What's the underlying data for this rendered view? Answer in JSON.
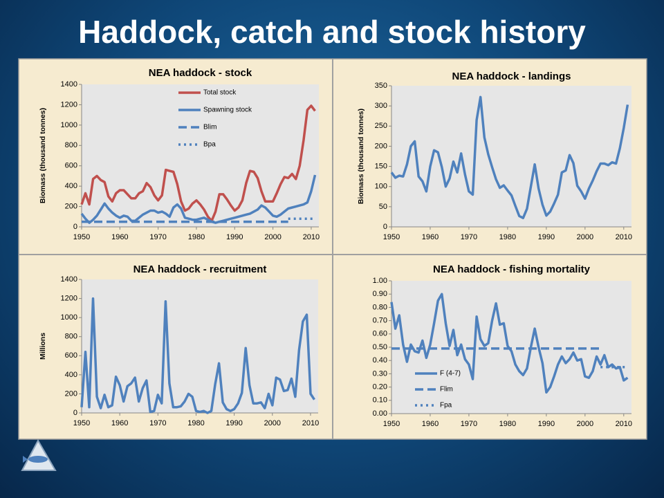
{
  "title": "Haddock, catch and stock history",
  "chart_data": [
    {
      "type": "line",
      "title": "NEA haddock - stock",
      "ylabel": "Biomass (thousand tonnes)",
      "x": [
        1950,
        1951,
        1952,
        1953,
        1954,
        1955,
        1956,
        1957,
        1958,
        1959,
        1960,
        1961,
        1962,
        1963,
        1964,
        1965,
        1966,
        1967,
        1968,
        1969,
        1970,
        1971,
        1972,
        1973,
        1974,
        1975,
        1976,
        1977,
        1978,
        1979,
        1980,
        1981,
        1982,
        1983,
        1984,
        1985,
        1986,
        1987,
        1988,
        1989,
        1990,
        1991,
        1992,
        1993,
        1994,
        1995,
        1996,
        1997,
        1998,
        1999,
        2000,
        2001,
        2002,
        2003,
        2004,
        2005,
        2006,
        2007,
        2008,
        2009,
        2010,
        2011
      ],
      "series": [
        {
          "name": "Total stock",
          "color": "#c0504d",
          "style": "solid",
          "values": [
            220,
            330,
            220,
            470,
            500,
            460,
            440,
            300,
            250,
            330,
            360,
            360,
            320,
            280,
            280,
            330,
            350,
            430,
            390,
            310,
            260,
            310,
            560,
            550,
            540,
            420,
            250,
            160,
            180,
            230,
            260,
            220,
            170,
            100,
            60,
            150,
            320,
            320,
            270,
            210,
            160,
            190,
            260,
            430,
            550,
            540,
            480,
            350,
            250,
            250,
            250,
            330,
            420,
            490,
            480,
            520,
            470,
            600,
            850,
            1150,
            1190,
            1140
          ]
        },
        {
          "name": "Spawning stock",
          "color": "#4f81bd",
          "style": "solid",
          "values": [
            130,
            80,
            40,
            70,
            110,
            170,
            230,
            180,
            140,
            110,
            90,
            110,
            100,
            60,
            60,
            90,
            120,
            140,
            160,
            160,
            140,
            150,
            130,
            100,
            190,
            220,
            180,
            90,
            80,
            70,
            70,
            80,
            90,
            70,
            50,
            40,
            50,
            60,
            70,
            80,
            90,
            100,
            110,
            120,
            130,
            150,
            170,
            210,
            190,
            150,
            110,
            100,
            120,
            150,
            180,
            190,
            200,
            210,
            220,
            240,
            350,
            510
          ]
        },
        {
          "name": "Blim",
          "color": "#4f81bd",
          "style": "dashed",
          "x": [
            1950,
            2004
          ],
          "values": [
            50,
            50
          ]
        },
        {
          "name": "Bpa",
          "color": "#4f81bd",
          "style": "dotted",
          "x": [
            2004,
            2011
          ],
          "values": [
            80,
            80
          ]
        }
      ],
      "xlim": [
        1950,
        2012
      ],
      "xticks": [
        1950,
        1960,
        1970,
        1980,
        1990,
        2000,
        2010
      ],
      "ylim": [
        0,
        1400
      ],
      "yticks": [
        0,
        200,
        400,
        600,
        800,
        1000,
        1200,
        1400
      ],
      "legend": "top"
    },
    {
      "type": "line",
      "title": "NEA haddock - landings",
      "ylabel": "Biomass (thousand tonnes)",
      "x": [
        1950,
        1951,
        1952,
        1953,
        1954,
        1955,
        1956,
        1957,
        1958,
        1959,
        1960,
        1961,
        1962,
        1963,
        1964,
        1965,
        1966,
        1967,
        1968,
        1969,
        1970,
        1971,
        1972,
        1973,
        1974,
        1975,
        1976,
        1977,
        1978,
        1979,
        1980,
        1981,
        1982,
        1983,
        1984,
        1985,
        1986,
        1987,
        1988,
        1989,
        1990,
        1991,
        1992,
        1993,
        1994,
        1995,
        1996,
        1997,
        1998,
        1999,
        2000,
        2001,
        2002,
        2003,
        2004,
        2005,
        2006,
        2007,
        2008,
        2009,
        2010,
        2011
      ],
      "series": [
        {
          "color": "#4f81bd",
          "style": "solid",
          "values": [
            135,
            122,
            127,
            125,
            155,
            200,
            212,
            125,
            113,
            88,
            150,
            190,
            185,
            148,
            100,
            120,
            162,
            135,
            182,
            130,
            88,
            80,
            265,
            322,
            222,
            180,
            148,
            118,
            97,
            103,
            90,
            78,
            52,
            27,
            22,
            45,
            100,
            155,
            95,
            55,
            28,
            38,
            58,
            80,
            135,
            140,
            178,
            158,
            102,
            88,
            70,
            95,
            115,
            138,
            157,
            157,
            153,
            160,
            157,
            195,
            245,
            303
          ]
        }
      ],
      "xlim": [
        1950,
        2012
      ],
      "xticks": [
        1950,
        1960,
        1970,
        1980,
        1990,
        2000,
        2010
      ],
      "ylim": [
        0,
        350
      ],
      "yticks": [
        0,
        50,
        100,
        150,
        200,
        250,
        300,
        350
      ]
    },
    {
      "type": "line",
      "title": "NEA haddock - recruitment",
      "ylabel": "Millions",
      "x": [
        1950,
        1951,
        1952,
        1953,
        1954,
        1955,
        1956,
        1957,
        1958,
        1959,
        1960,
        1961,
        1962,
        1963,
        1964,
        1965,
        1966,
        1967,
        1968,
        1969,
        1970,
        1971,
        1972,
        1973,
        1974,
        1975,
        1976,
        1977,
        1978,
        1979,
        1980,
        1981,
        1982,
        1983,
        1984,
        1985,
        1986,
        1987,
        1988,
        1989,
        1990,
        1991,
        1992,
        1993,
        1994,
        1995,
        1996,
        1997,
        1998,
        1999,
        2000,
        2001,
        2002,
        2003,
        2004,
        2005,
        2006,
        2007,
        2008,
        2009,
        2010,
        2011
      ],
      "series": [
        {
          "color": "#4f81bd",
          "style": "solid",
          "values": [
            60,
            640,
            60,
            1200,
            170,
            50,
            190,
            60,
            80,
            380,
            290,
            120,
            280,
            310,
            370,
            120,
            260,
            340,
            10,
            20,
            190,
            100,
            1170,
            310,
            60,
            60,
            70,
            120,
            200,
            170,
            20,
            10,
            20,
            0,
            20,
            300,
            520,
            110,
            40,
            20,
            40,
            100,
            210,
            680,
            290,
            100,
            100,
            110,
            50,
            200,
            80,
            370,
            350,
            230,
            240,
            360,
            170,
            660,
            960,
            1030,
            200,
            140
          ]
        }
      ],
      "xlim": [
        1950,
        2012
      ],
      "xticks": [
        1950,
        1960,
        1970,
        1980,
        1990,
        2000,
        2010
      ],
      "ylim": [
        0,
        1400
      ],
      "yticks": [
        0,
        200,
        400,
        600,
        800,
        1000,
        1200,
        1400
      ]
    },
    {
      "type": "line",
      "title": "NEA haddock - fishing mortality",
      "x": [
        1950,
        1951,
        1952,
        1953,
        1954,
        1955,
        1956,
        1957,
        1958,
        1959,
        1960,
        1961,
        1962,
        1963,
        1964,
        1965,
        1966,
        1967,
        1968,
        1969,
        1970,
        1971,
        1972,
        1973,
        1974,
        1975,
        1976,
        1977,
        1978,
        1979,
        1980,
        1981,
        1982,
        1983,
        1984,
        1985,
        1986,
        1987,
        1988,
        1989,
        1990,
        1991,
        1992,
        1993,
        1994,
        1995,
        1996,
        1997,
        1998,
        1999,
        2000,
        2001,
        2002,
        2003,
        2004,
        2005,
        2006,
        2007,
        2008,
        2009,
        2010,
        2011
      ],
      "series": [
        {
          "name": "F (4-7)",
          "color": "#4f81bd",
          "style": "solid",
          "values": [
            0.84,
            0.64,
            0.74,
            0.52,
            0.39,
            0.52,
            0.47,
            0.46,
            0.55,
            0.42,
            0.52,
            0.68,
            0.85,
            0.9,
            0.68,
            0.51,
            0.63,
            0.44,
            0.52,
            0.41,
            0.37,
            0.26,
            0.73,
            0.56,
            0.51,
            0.53,
            0.7,
            0.83,
            0.67,
            0.68,
            0.51,
            0.47,
            0.37,
            0.32,
            0.29,
            0.34,
            0.5,
            0.64,
            0.5,
            0.38,
            0.16,
            0.2,
            0.28,
            0.37,
            0.43,
            0.38,
            0.41,
            0.46,
            0.4,
            0.41,
            0.28,
            0.27,
            0.32,
            0.43,
            0.37,
            0.44,
            0.35,
            0.37,
            0.34,
            0.35,
            0.25,
            0.27
          ]
        },
        {
          "name": "Flim",
          "color": "#4f81bd",
          "style": "dashed",
          "x": [
            1950,
            2004
          ],
          "values": [
            0.49,
            0.49
          ]
        },
        {
          "name": "Fpa",
          "color": "#4f81bd",
          "style": "dotted",
          "x": [
            2004,
            2011
          ],
          "values": [
            0.35,
            0.35
          ]
        }
      ],
      "xlim": [
        1950,
        2012
      ],
      "xticks": [
        1950,
        1960,
        1970,
        1980,
        1990,
        2000,
        2010
      ],
      "ylim": [
        0,
        1
      ],
      "yticks": [
        {
          "value": 0,
          "label": "0.00"
        },
        {
          "value": 0.1,
          "label": "0.10"
        },
        {
          "value": 0.2,
          "label": "0.20"
        },
        {
          "value": 0.3,
          "label": "0.30"
        },
        {
          "value": 0.4,
          "label": "0.40"
        },
        {
          "value": 0.5,
          "label": "0.50"
        },
        {
          "value": 0.6,
          "label": "0.60"
        },
        {
          "value": 0.7,
          "label": "0.70"
        },
        {
          "value": 0.8,
          "label": "0.80"
        },
        {
          "value": 0.9,
          "label": "0.90"
        },
        {
          "value": 1,
          "label": "1.00"
        }
      ],
      "legend": "lower left"
    }
  ]
}
